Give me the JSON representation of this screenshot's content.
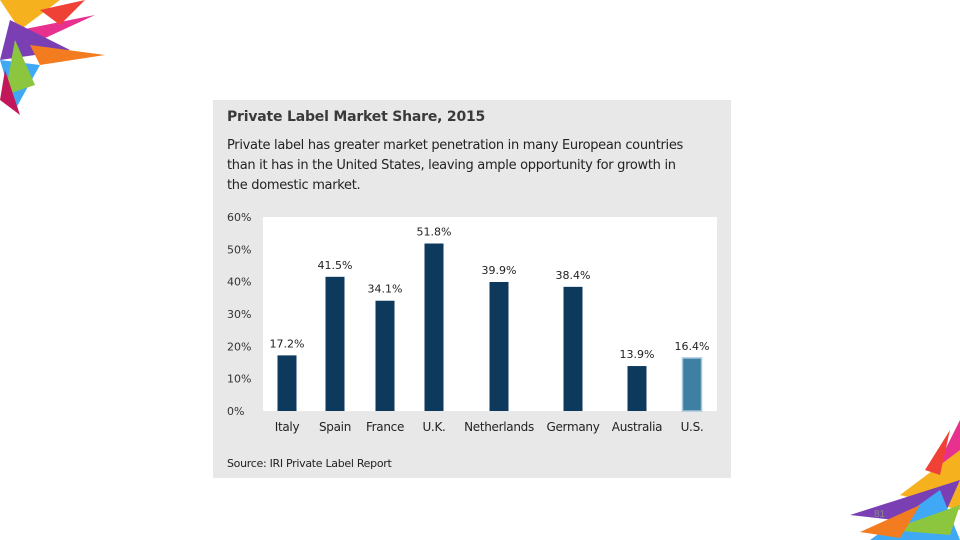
{
  "slide": {
    "page_number": "81"
  },
  "figure": {
    "title": "Private Label Market Share, 2015",
    "subtitle": "Private label has greater market penetration in many European countries than it has in the United States, leaving ample opportunity for growth in the domestic market.",
    "source": "Source: IRI Private Label Report"
  },
  "chart_data": {
    "type": "bar",
    "title": "Private Label Market Share, 2015",
    "xlabel": "",
    "ylabel": "",
    "ylim": [
      0,
      60
    ],
    "yticks": [
      "0%",
      "10%",
      "20%",
      "30%",
      "40%",
      "50%",
      "60%"
    ],
    "categories": [
      "Italy",
      "Spain",
      "France",
      "U.K.",
      "Netherlands",
      "Germany",
      "Australia",
      "U.S."
    ],
    "values": [
      17.2,
      41.5,
      34.1,
      51.8,
      39.9,
      38.4,
      13.9,
      16.4
    ],
    "data_labels": [
      "17.2%",
      "41.5%",
      "34.1%",
      "51.8%",
      "39.9%",
      "38.4%",
      "13.9%",
      "16.4%"
    ],
    "colors": {
      "bar": "#0d3a5c",
      "highlight_bar": "#3f7fa1",
      "highlight_edge": "#a6c8dc",
      "plot_bg": "#ffffff",
      "panel_bg": "#e8e8e8"
    },
    "highlight_category": "U.S.",
    "grid": false
  }
}
